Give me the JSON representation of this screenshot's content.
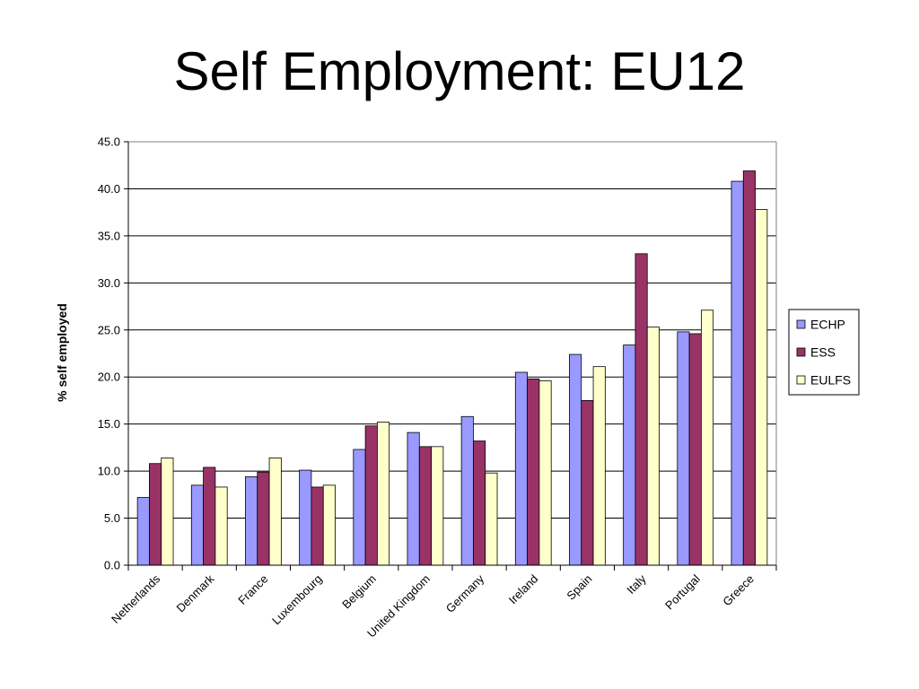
{
  "slide": {
    "title": "Self Employment: EU12"
  },
  "colors": {
    "ECHP": "#9999ff",
    "ESS": "#993366",
    "EULFS": "#ffffcc",
    "gridline": "#000000",
    "plot_border": "#808080",
    "bar_outline": "#000000"
  },
  "chart_data": {
    "type": "bar",
    "title": "",
    "xlabel": "",
    "ylabel": "% self employed",
    "ylim": [
      0,
      45
    ],
    "ytick_step": 5,
    "ytick_labels": [
      "0.0",
      "5.0",
      "10.0",
      "15.0",
      "20.0",
      "25.0",
      "30.0",
      "35.0",
      "40.0",
      "45.0"
    ],
    "grid": true,
    "legend_position": "right",
    "categories": [
      "Netherlands",
      "Denmark",
      "France",
      "Luxembourg",
      "Belgium",
      "United Kingdom",
      "Germany",
      "Ireland",
      "Spain",
      "Italy",
      "Portugal",
      "Greece"
    ],
    "series": [
      {
        "name": "ECHP",
        "values": [
          7.2,
          8.5,
          9.4,
          10.1,
          12.3,
          14.1,
          15.8,
          20.5,
          22.4,
          23.4,
          24.8,
          40.8
        ]
      },
      {
        "name": "ESS",
        "values": [
          10.8,
          10.4,
          9.9,
          8.3,
          14.8,
          12.6,
          13.2,
          19.8,
          17.5,
          33.1,
          24.6,
          41.9
        ]
      },
      {
        "name": "EULFS",
        "values": [
          11.4,
          8.3,
          11.4,
          8.5,
          15.2,
          12.6,
          9.8,
          19.6,
          21.1,
          25.3,
          27.1,
          37.8
        ]
      }
    ]
  }
}
